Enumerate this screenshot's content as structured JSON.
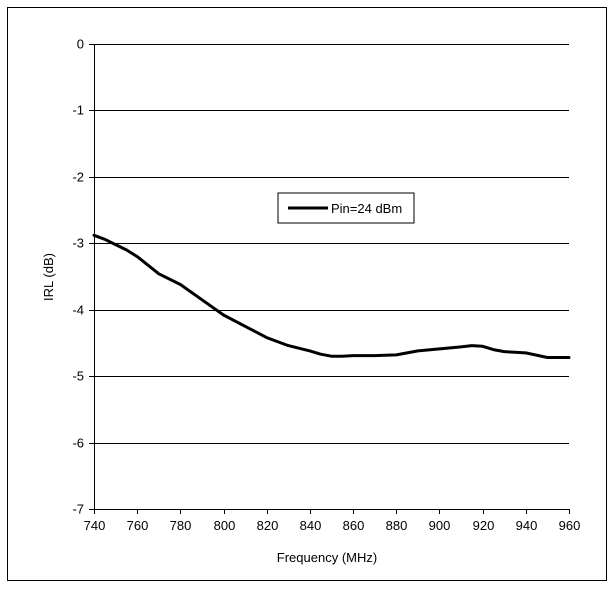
{
  "chart_data": {
    "type": "line",
    "title": "",
    "xlabel": "Frequency (MHz)",
    "ylabel": "IRL (dB)",
    "xlim": [
      740,
      960
    ],
    "ylim": [
      -7,
      0
    ],
    "x_ticks": [
      "740",
      "760",
      "780",
      "800",
      "820",
      "840",
      "860",
      "880",
      "900",
      "920",
      "940",
      "960"
    ],
    "y_ticks": [
      "0",
      "-1",
      "-2",
      "-3",
      "-4",
      "-5",
      "-6",
      "-7"
    ],
    "grid": "horizontal",
    "legend_position": "upper-center",
    "series": [
      {
        "name": "Pin=24 dBm",
        "color": "#000000",
        "x": [
          740,
          745,
          750,
          755,
          760,
          765,
          770,
          780,
          790,
          800,
          810,
          820,
          830,
          840,
          845,
          850,
          855,
          860,
          870,
          880,
          890,
          900,
          910,
          915,
          920,
          925,
          930,
          940,
          950,
          960
        ],
        "y": [
          -2.88,
          -2.94,
          -3.02,
          -3.1,
          -3.2,
          -3.33,
          -3.46,
          -3.62,
          -3.85,
          -4.08,
          -4.25,
          -4.42,
          -4.54,
          -4.62,
          -4.67,
          -4.7,
          -4.7,
          -4.69,
          -4.69,
          -4.68,
          -4.62,
          -4.59,
          -4.56,
          -4.54,
          -4.55,
          -4.6,
          -4.63,
          -4.65,
          -4.72,
          -4.72
        ]
      }
    ]
  }
}
